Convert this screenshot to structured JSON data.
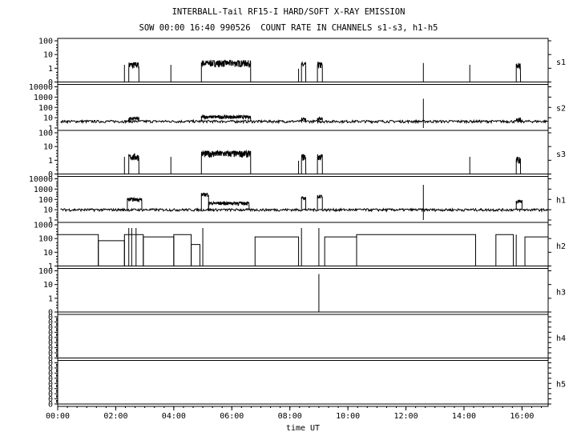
{
  "header": {
    "title": "INTERBALL-Tail RF15-I HARD/SOFT X-RAY EMISSION",
    "subtitle": "SOW 00:00 16:40 990526  COUNT RATE IN CHANNELS s1-s3, h1-h5"
  },
  "chart_data": {
    "type": "line",
    "title": "INTERBALL-Tail RF15-I HARD/SOFT X-RAY EMISSION",
    "subtitle": "SOW 00:00 16:40 990526  COUNT RATE IN CHANNELS s1-s3, h1-h5",
    "xlabel": "time UT",
    "x_ticks": [
      "00:00",
      "02:00",
      "04:00",
      "06:00",
      "08:00",
      "10:00",
      "12:00",
      "14:00",
      "16:00"
    ],
    "xlim_hours": [
      0,
      16.9
    ],
    "yscale": "log",
    "panels": [
      {
        "name": "s1",
        "y_ticks": [
          "100",
          "10",
          "1",
          "0"
        ],
        "baseline": 0,
        "plateaus": [
          {
            "start": 2.45,
            "end": 2.8,
            "level": 8
          },
          {
            "start": 4.95,
            "end": 6.65,
            "level": 10
          },
          {
            "start": 8.4,
            "end": 8.55,
            "level": 8
          },
          {
            "start": 8.95,
            "end": 9.12,
            "level": 8
          },
          {
            "start": 15.8,
            "end": 15.95,
            "level": 7
          }
        ],
        "spikes": [
          {
            "t": 2.3,
            "v": 8
          },
          {
            "t": 3.9,
            "v": 8
          },
          {
            "t": 8.3,
            "v": 5
          },
          {
            "t": 12.6,
            "v": 10
          },
          {
            "t": 14.2,
            "v": 8
          }
        ]
      },
      {
        "name": "s2",
        "y_ticks": [
          "10000",
          "1000",
          "100",
          "10",
          "1"
        ],
        "baseline": 5,
        "plateaus": [
          {
            "start": 2.45,
            "end": 2.8,
            "level": 10
          },
          {
            "start": 4.95,
            "end": 6.65,
            "level": 15
          },
          {
            "start": 8.4,
            "end": 8.55,
            "level": 10
          },
          {
            "start": 8.95,
            "end": 9.12,
            "level": 10
          },
          {
            "start": 15.8,
            "end": 15.95,
            "level": 8
          }
        ],
        "spikes": [
          {
            "t": 12.6,
            "v": 1200
          }
        ]
      },
      {
        "name": "s3",
        "y_ticks": [
          "100",
          "10",
          "1",
          "0"
        ],
        "baseline": 0,
        "plateaus": [
          {
            "start": 2.45,
            "end": 2.8,
            "level": 8
          },
          {
            "start": 4.95,
            "end": 6.65,
            "level": 12
          },
          {
            "start": 8.4,
            "end": 8.55,
            "level": 8
          },
          {
            "start": 8.95,
            "end": 9.12,
            "level": 8
          },
          {
            "start": 15.8,
            "end": 15.95,
            "level": 6
          }
        ],
        "spikes": [
          {
            "t": 2.3,
            "v": 8
          },
          {
            "t": 3.9,
            "v": 8
          },
          {
            "t": 8.3,
            "v": 5
          },
          {
            "t": 14.2,
            "v": 8
          }
        ]
      },
      {
        "name": "h1",
        "y_ticks": [
          "10000",
          "1000",
          "100",
          "10",
          "1"
        ],
        "baseline": 12,
        "plateaus": [
          {
            "start": 2.4,
            "end": 2.9,
            "level": 150
          },
          {
            "start": 4.95,
            "end": 5.2,
            "level": 500
          },
          {
            "start": 5.2,
            "end": 6.6,
            "level": 60
          },
          {
            "start": 8.4,
            "end": 8.55,
            "level": 200
          },
          {
            "start": 8.95,
            "end": 9.12,
            "level": 300
          },
          {
            "start": 15.8,
            "end": 16.0,
            "level": 100
          }
        ],
        "spikes": [
          {
            "t": 12.6,
            "v": 5000
          }
        ]
      },
      {
        "name": "h2",
        "y_ticks": [
          "1000",
          "100",
          "10",
          "1"
        ],
        "baseline": 0,
        "segments": [
          {
            "start": 0.0,
            "end": 1.4,
            "level": 300
          },
          {
            "start": 1.4,
            "end": 2.3,
            "level": 100
          },
          {
            "start": 2.3,
            "end": 2.95,
            "level": 300
          },
          {
            "start": 2.95,
            "end": 4.0,
            "level": 200
          },
          {
            "start": 4.0,
            "end": 4.6,
            "level": 300
          },
          {
            "start": 4.6,
            "end": 4.9,
            "level": 50
          },
          {
            "start": 6.8,
            "end": 8.3,
            "level": 200
          },
          {
            "start": 9.2,
            "end": 10.3,
            "level": 200
          },
          {
            "start": 10.3,
            "end": 14.4,
            "level": 300
          },
          {
            "start": 15.1,
            "end": 15.7,
            "level": 300
          },
          {
            "start": 16.1,
            "end": 16.9,
            "level": 200
          }
        ],
        "spikes": [
          {
            "t": 2.45,
            "v": 1000
          },
          {
            "t": 2.55,
            "v": 1000
          },
          {
            "t": 2.7,
            "v": 1000
          },
          {
            "t": 5.0,
            "v": 1000
          },
          {
            "t": 8.4,
            "v": 1000
          },
          {
            "t": 9.0,
            "v": 1000
          },
          {
            "t": 15.8,
            "v": 300
          }
        ]
      },
      {
        "name": "h3",
        "y_ticks": [
          "100",
          "10",
          "1",
          "0"
        ],
        "baseline": 0,
        "spikes": [
          {
            "t": 9.0,
            "v": 100
          }
        ]
      },
      {
        "name": "h4",
        "y_ticks": [
          "0",
          "0",
          "0",
          "0",
          "0",
          "0",
          "0",
          "0",
          "0"
        ],
        "baseline": 0,
        "spikes": []
      },
      {
        "name": "h5",
        "y_ticks": [
          "0",
          "0",
          "0",
          "0",
          "0",
          "0",
          "0",
          "0",
          "0"
        ],
        "baseline": 0,
        "spikes": []
      }
    ]
  }
}
